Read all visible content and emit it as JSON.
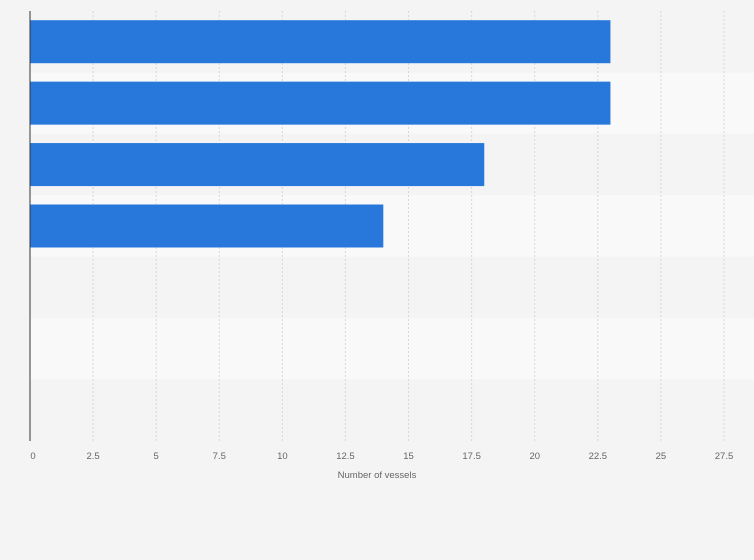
{
  "chart_data": {
    "type": "bar",
    "orientation": "horizontal",
    "categories": [
      "",
      "",
      "",
      "",
      "",
      "",
      ""
    ],
    "values": [
      23,
      23,
      18,
      14,
      0,
      0,
      0
    ],
    "xlabel": "Number of vessels",
    "ylabel": "",
    "xlim": [
      0,
      27.5
    ],
    "xticks": [
      0,
      2.5,
      5,
      7.5,
      10,
      12.5,
      15,
      17.5,
      20,
      22.5,
      25,
      27.5
    ],
    "tick_labels": [
      "0",
      "2.5",
      "5",
      "7.5",
      "10",
      "12.5",
      "15",
      "17.5",
      "20",
      "22.5",
      "25",
      "27.5"
    ],
    "grid": true,
    "legend": "none",
    "colors": {
      "bar": "#2878dc",
      "band_light": "#f9f9f9",
      "band_dark": "#f4f4f4",
      "grid": "#d7d7d7",
      "axis": "#333333",
      "text": "#666666",
      "background": "#f4f4f4"
    }
  }
}
